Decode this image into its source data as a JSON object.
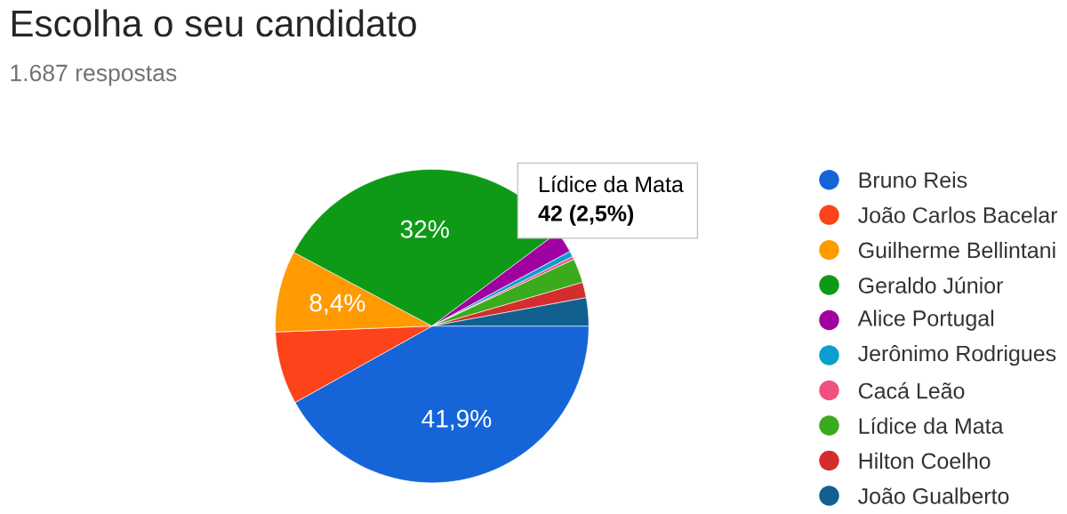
{
  "chart_data": {
    "type": "pie",
    "title": "Escolha o seu candidato",
    "subtitle": "1.687 respostas",
    "categories": [
      "Bruno Reis",
      "João Carlos Bacelar",
      "Guilherme Bellintani",
      "Geraldo Júnior",
      "Alice Portugal",
      "Jerônimo Rodrigues",
      "Cacá Leão",
      "Lídice da Mata",
      "Hilton Coelho",
      "João Gualberto"
    ],
    "values": [
      41.9,
      7.5,
      8.4,
      32,
      2.3,
      0.6,
      0.3,
      2.5,
      1.6,
      2.9
    ],
    "value_labels": [
      "41,9%",
      null,
      "8,4%",
      "32%",
      null,
      null,
      null,
      null,
      null,
      null
    ],
    "colors": [
      "#1565d8",
      "#fc4319",
      "#ff9a00",
      "#0e9a17",
      "#a100a1",
      "#0b9fcf",
      "#f0507f",
      "#3aab1c",
      "#d42d2d",
      "#11608f"
    ],
    "annotations": [
      "Lídice da Mata",
      "42 (2,5%)"
    ],
    "legend": "right"
  }
}
